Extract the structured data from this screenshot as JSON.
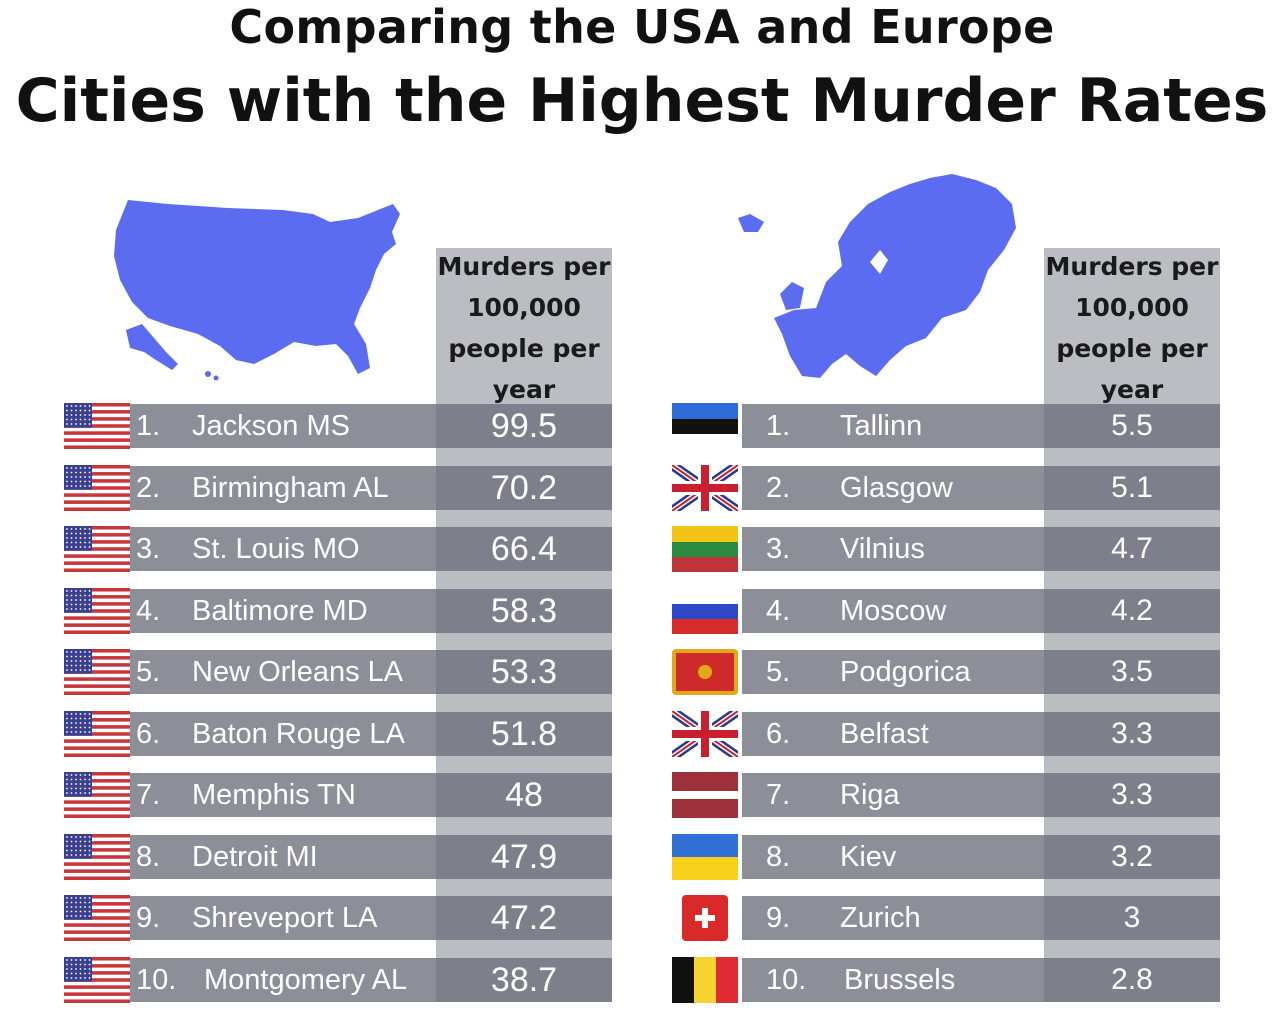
{
  "title": "Comparing the USA and Europe",
  "subtitle": "Cities with the Highest Murder Rates",
  "colors": {
    "map_fill": "#5b6cf0",
    "row_band": "#8c8e98",
    "value_cell": "#7d7f8a",
    "header_column": "#bcbdc3",
    "text_light": "#ffffff"
  },
  "usa": {
    "map_icon": "usa-map-icon",
    "column_header": [
      "Murders per",
      "100,000",
      "people per",
      "year"
    ],
    "rows": [
      {
        "rank": "1.",
        "city": "Jackson MS",
        "value": "99.5",
        "flag_icon": "usa-flag-icon"
      },
      {
        "rank": "2.",
        "city": "Birmingham AL",
        "value": "70.2",
        "flag_icon": "usa-flag-icon"
      },
      {
        "rank": "3.",
        "city": "St. Louis MO",
        "value": "66.4",
        "flag_icon": "usa-flag-icon"
      },
      {
        "rank": "4.",
        "city": "Baltimore MD",
        "value": "58.3",
        "flag_icon": "usa-flag-icon"
      },
      {
        "rank": "5.",
        "city": "New Orleans LA",
        "value": "53.3",
        "flag_icon": "usa-flag-icon"
      },
      {
        "rank": "6.",
        "city": "Baton Rouge LA",
        "value": "51.8",
        "flag_icon": "usa-flag-icon"
      },
      {
        "rank": "7.",
        "city": "Memphis TN",
        "value": "48",
        "flag_icon": "usa-flag-icon"
      },
      {
        "rank": "8.",
        "city": "Detroit MI",
        "value": "47.9",
        "flag_icon": "usa-flag-icon"
      },
      {
        "rank": "9.",
        "city": "Shreveport LA",
        "value": "47.2",
        "flag_icon": "usa-flag-icon"
      },
      {
        "rank": "10.",
        "city": "Montgomery AL",
        "value": "38.7",
        "flag_icon": "usa-flag-icon"
      }
    ]
  },
  "europe": {
    "map_icon": "europe-map-icon",
    "column_header": [
      "Murders per",
      "100,000",
      "people per",
      "year"
    ],
    "rows": [
      {
        "rank": "1.",
        "city": "Tallinn",
        "value": "5.5",
        "flag_icon": "estonia-flag-icon"
      },
      {
        "rank": "2.",
        "city": "Glasgow",
        "value": "5.1",
        "flag_icon": "uk-flag-icon"
      },
      {
        "rank": "3.",
        "city": "Vilnius",
        "value": "4.7",
        "flag_icon": "lithuania-flag-icon"
      },
      {
        "rank": "4.",
        "city": "Moscow",
        "value": "4.2",
        "flag_icon": "russia-flag-icon"
      },
      {
        "rank": "5.",
        "city": "Podgorica",
        "value": "3.5",
        "flag_icon": "montenegro-flag-icon"
      },
      {
        "rank": "6.",
        "city": "Belfast",
        "value": "3.3",
        "flag_icon": "uk-flag-icon"
      },
      {
        "rank": "7.",
        "city": "Riga",
        "value": "3.3",
        "flag_icon": "latvia-flag-icon"
      },
      {
        "rank": "8.",
        "city": "Kiev",
        "value": "3.2",
        "flag_icon": "ukraine-flag-icon"
      },
      {
        "rank": "9.",
        "city": "Zurich",
        "value": "3",
        "flag_icon": "switzerland-flag-icon"
      },
      {
        "rank": "10.",
        "city": "Brussels",
        "value": "2.8",
        "flag_icon": "belgium-flag-icon"
      }
    ]
  },
  "chart_data": [
    {
      "type": "table",
      "title": "Comparing the USA and Europe",
      "subtitle": "Cities with the Highest Murder Rates",
      "ylabel": "Murders per 100,000 people per year",
      "categories": [
        "Jackson MS",
        "Birmingham AL",
        "St. Louis MO",
        "Baltimore MD",
        "New Orleans LA",
        "Baton Rouge LA",
        "Memphis TN",
        "Detroit MI",
        "Shreveport LA",
        "Montgomery AL"
      ],
      "values": [
        99.5,
        70.2,
        66.4,
        58.3,
        53.3,
        51.8,
        48,
        47.9,
        47.2,
        38.7
      ]
    },
    {
      "type": "table",
      "title": "Comparing the USA and Europe",
      "subtitle": "Cities with the Highest Murder Rates",
      "ylabel": "Murders per 100,000 people per year",
      "categories": [
        "Tallinn",
        "Glasgow",
        "Vilnius",
        "Moscow",
        "Podgorica",
        "Belfast",
        "Riga",
        "Kiev",
        "Zurich",
        "Brussels"
      ],
      "values": [
        5.5,
        5.1,
        4.7,
        4.2,
        3.5,
        3.3,
        3.3,
        3.2,
        3,
        2.8
      ]
    }
  ]
}
